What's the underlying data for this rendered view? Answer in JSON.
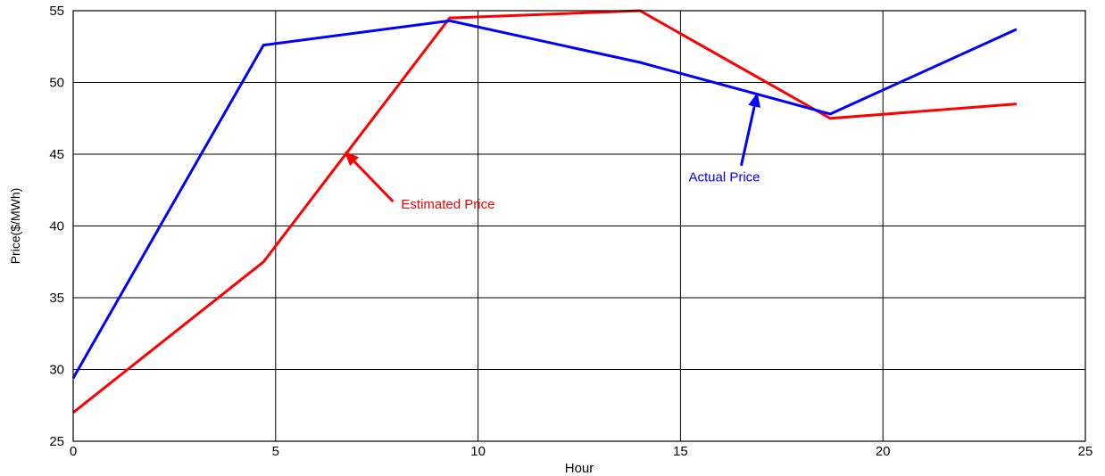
{
  "chart_data": {
    "type": "line",
    "xlabel": "Hour",
    "ylabel": "Price($/MWh)",
    "xlim": [
      0,
      25
    ],
    "ylim": [
      25,
      55
    ],
    "xticks": [
      0,
      5,
      10,
      15,
      20,
      25
    ],
    "yticks": [
      25,
      30,
      35,
      40,
      45,
      50,
      55
    ],
    "grid": true,
    "x": [
      0,
      4.7,
      9.3,
      14,
      18.7,
      23.3
    ],
    "series": [
      {
        "name": "Actual Price",
        "color": "#0000ff",
        "values": [
          29.4,
          52.6,
          54.3,
          51.4,
          47.8,
          53.7
        ]
      },
      {
        "name": "Estimated Price",
        "color": "#ff0000",
        "values": [
          27.0,
          37.5,
          54.5,
          55.0,
          47.5,
          48.5
        ]
      }
    ],
    "annotations": [
      {
        "text": "Estimated Price",
        "color": "#ff0000",
        "point_x": 6.7,
        "point_y": 45.2
      },
      {
        "text": "Actual Price",
        "color": "#0000ff",
        "point_x": 16.9,
        "point_y": 49.3
      }
    ]
  }
}
